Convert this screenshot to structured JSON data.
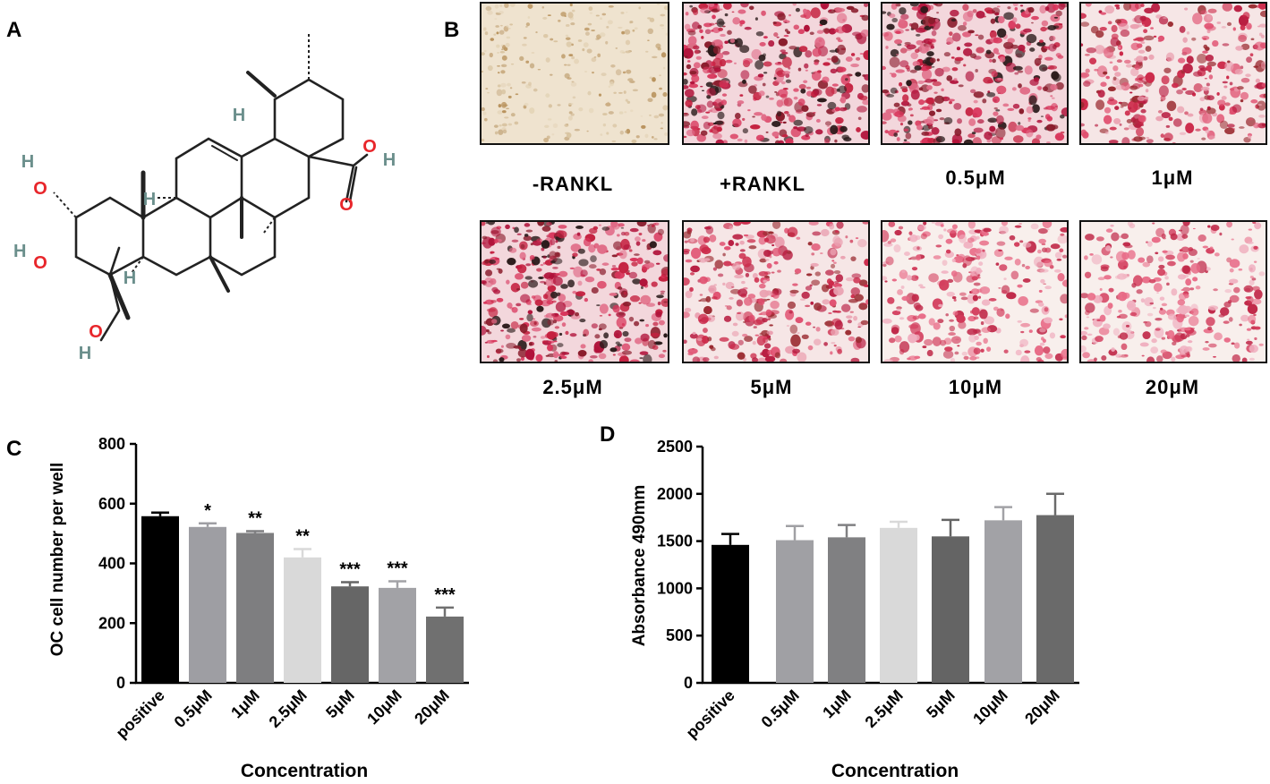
{
  "panels": {
    "a": "A",
    "b": "B",
    "c": "C",
    "d": "D"
  },
  "molecule": {
    "atoms": {
      "oh_top_h": "H",
      "oh_top_o": "O",
      "oh_mid_h": "H",
      "oh_mid_o": "O",
      "oh_bottom_o": "O",
      "oh_bottom_h": "H",
      "h_ring1": "H",
      "h_ring2": "H",
      "h_ring3": "H",
      "acid_o1": "O",
      "acid_h": "H",
      "acid_o2": "O"
    },
    "colors": {
      "oxygen": "#e8262b",
      "hydrogen": "#6b8f8c",
      "bond": "#222222"
    }
  },
  "micrographs": [
    {
      "label": "-RANKL",
      "tone": "unstained"
    },
    {
      "label": "+RANKL",
      "tone": "dense"
    },
    {
      "label": "0.5μM",
      "tone": "dense"
    },
    {
      "label": "1μM",
      "tone": "medium"
    },
    {
      "label": "2.5μM",
      "tone": "dense"
    },
    {
      "label": "5μM",
      "tone": "medium"
    },
    {
      "label": "10μM",
      "tone": "light"
    },
    {
      "label": "20μM",
      "tone": "light"
    }
  ],
  "chart_data": [
    {
      "type": "bar",
      "categories": [
        "positive",
        "0.5μM",
        "1μM",
        "2.5μM",
        "5μM",
        "10μM",
        "20μM"
      ],
      "values": [
        558,
        522,
        502,
        420,
        323,
        318,
        222
      ],
      "errors": [
        12,
        12,
        6,
        28,
        14,
        22,
        30
      ],
      "annotations": [
        "",
        "*",
        "**",
        "**",
        "***",
        "***",
        "***"
      ],
      "colors": [
        "#000000",
        "#9e9ea3",
        "#7e7e80",
        "#d9d9d9",
        "#666666",
        "#a2a2a6",
        "#707070"
      ],
      "xlabel": "Concentration",
      "ylabel": "OC cell number per well",
      "ylim": [
        0,
        800
      ],
      "yticks": [
        0,
        200,
        400,
        600,
        800
      ]
    },
    {
      "type": "bar",
      "categories": [
        "positive",
        "0.5μM",
        "1μM",
        "2.5μM",
        "5μM",
        "10μM",
        "20μM"
      ],
      "values": [
        1460,
        1510,
        1540,
        1640,
        1550,
        1720,
        1775
      ],
      "errors": [
        115,
        150,
        130,
        65,
        175,
        140,
        225
      ],
      "annotations": [],
      "colors": [
        "#000000",
        "#a0a0a4",
        "#808082",
        "#d9d9d9",
        "#646464",
        "#a2a2a6",
        "#6a6a6a"
      ],
      "xlabel": "Concentration",
      "ylabel": "Absorbance 490mm",
      "ylim": [
        0,
        2500
      ],
      "yticks": [
        0,
        500,
        1000,
        1500,
        2000,
        2500
      ]
    }
  ]
}
